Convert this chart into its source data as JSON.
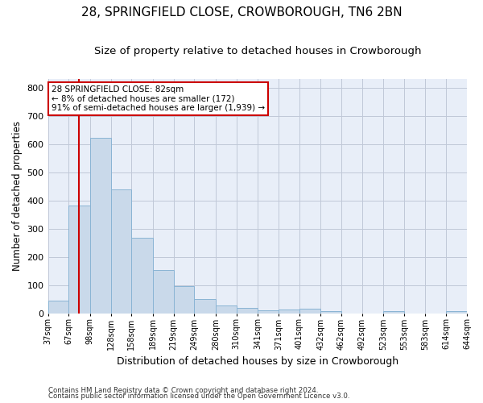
{
  "title": "28, SPRINGFIELD CLOSE, CROWBOROUGH, TN6 2BN",
  "subtitle": "Size of property relative to detached houses in Crowborough",
  "xlabel": "Distribution of detached houses by size in Crowborough",
  "ylabel": "Number of detached properties",
  "footnote1": "Contains HM Land Registry data © Crown copyright and database right 2024.",
  "footnote2": "Contains public sector information licensed under the Open Government Licence v3.0.",
  "bar_color": "#c9d9ea",
  "bar_edgecolor": "#8ab4d4",
  "grid_color": "#c0c8d8",
  "vline_color": "#cc0000",
  "vline_x": 82,
  "annotation_text": "28 SPRINGFIELD CLOSE: 82sqm\n← 8% of detached houses are smaller (172)\n91% of semi-detached houses are larger (1,939) →",
  "annotation_box_color": "#ffffff",
  "annotation_box_edgecolor": "#cc0000",
  "bin_edges": [
    37,
    67,
    98,
    128,
    158,
    189,
    219,
    249,
    280,
    310,
    341,
    371,
    401,
    432,
    462,
    492,
    523,
    553,
    583,
    614,
    644
  ],
  "bar_heights": [
    45,
    383,
    623,
    440,
    268,
    153,
    97,
    52,
    29,
    18,
    12,
    13,
    15,
    8,
    0,
    0,
    7,
    0,
    0,
    8
  ],
  "ylim": [
    0,
    830
  ],
  "yticks": [
    0,
    100,
    200,
    300,
    400,
    500,
    600,
    700,
    800
  ],
  "background_color": "#e8eef8",
  "title_fontsize": 11,
  "subtitle_fontsize": 9.5
}
